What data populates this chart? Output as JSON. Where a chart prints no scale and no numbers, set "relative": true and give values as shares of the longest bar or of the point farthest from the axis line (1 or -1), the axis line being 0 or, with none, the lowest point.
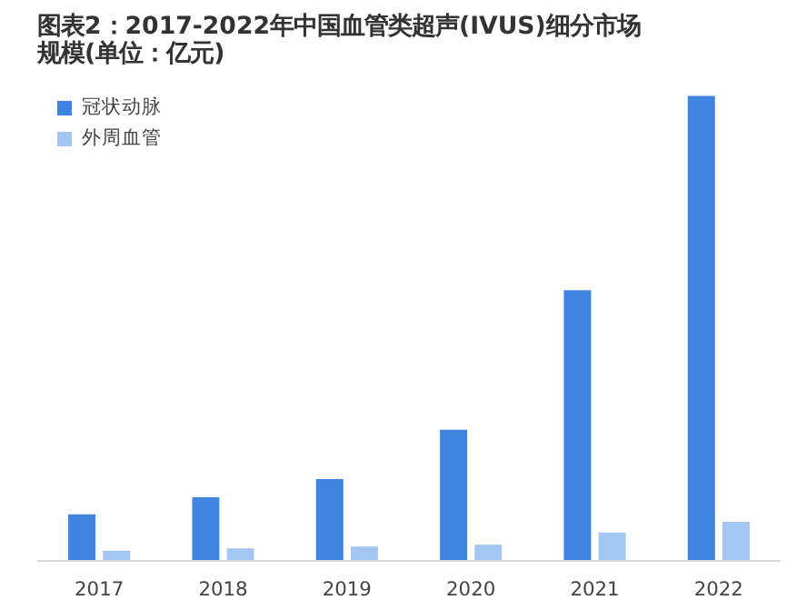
{
  "chart_data": {
    "type": "bar",
    "title": "图表2：2017-2022年中国血管类超声(IVUS)细分市场规模(单位：亿元)",
    "categories": [
      "2017",
      "2018",
      "2019",
      "2020",
      "2021",
      "2022"
    ],
    "relative": true,
    "legend": "top left",
    "grid": false,
    "series": [
      {
        "name": "冠状动脉",
        "color": "#3f85e0",
        "values": [
          0.1,
          0.137,
          0.176,
          0.282,
          0.582,
          1.0
        ]
      },
      {
        "name": "外周血管",
        "color": "#a3c6f2",
        "values": [
          0.022,
          0.027,
          0.031,
          0.035,
          0.061,
          0.084
        ]
      }
    ]
  }
}
